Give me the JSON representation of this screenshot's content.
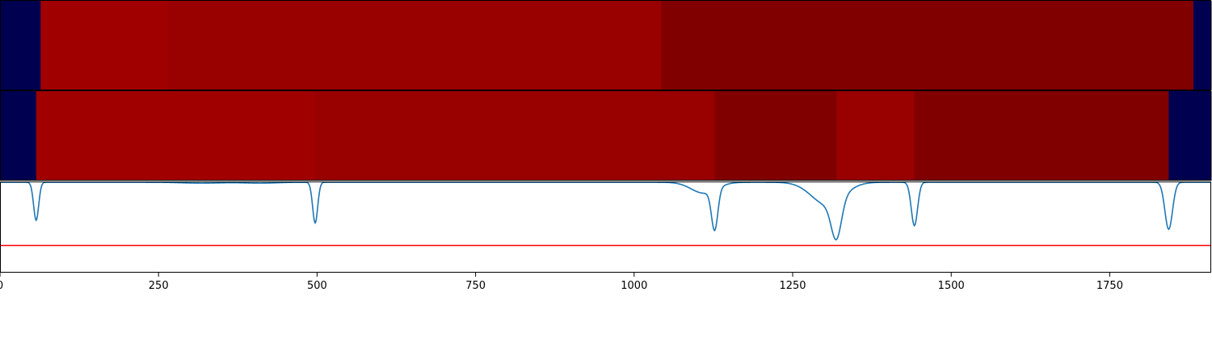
{
  "chart_data": {
    "type": "segment-timeline-with-line",
    "x_range": [
      0,
      1910
    ],
    "colors": {
      "background_segment": "#000050",
      "level_1": "#a00000",
      "level_2": "#990000",
      "level_3": "#800000",
      "signal_line": "#1f77b4",
      "threshold_line": "#ff0000",
      "frame": "#000000"
    },
    "rows": [
      {
        "segments": [
          {
            "start": 0,
            "end": 64,
            "level": "background_segment"
          },
          {
            "start": 64,
            "end": 265,
            "level": "level_1"
          },
          {
            "start": 265,
            "end": 1043,
            "level": "level_2"
          },
          {
            "start": 1043,
            "end": 1882,
            "level": "level_3"
          },
          {
            "start": 1882,
            "end": 1910,
            "level": "background_segment"
          }
        ]
      },
      {
        "segments": [
          {
            "start": 0,
            "end": 57,
            "level": "background_segment"
          },
          {
            "start": 57,
            "end": 497,
            "level": "level_1"
          },
          {
            "start": 497,
            "end": 1127,
            "level": "level_2"
          },
          {
            "start": 1127,
            "end": 1319,
            "level": "level_3"
          },
          {
            "start": 1319,
            "end": 1442,
            "level": "level_2"
          },
          {
            "start": 1442,
            "end": 1843,
            "level": "level_3"
          },
          {
            "start": 1843,
            "end": 1910,
            "level": "background_segment"
          }
        ]
      }
    ],
    "signal": {
      "baseline": 1.0,
      "threshold": 0.3,
      "ylim": [
        0.0,
        1.0
      ],
      "dips": [
        {
          "x": 57,
          "width": 4,
          "depth": 0.42
        },
        {
          "x": 318,
          "width": 30,
          "depth": 0.01
        },
        {
          "x": 410,
          "width": 25,
          "depth": 0.01
        },
        {
          "x": 497,
          "width": 4,
          "depth": 0.45
        },
        {
          "x": 1110,
          "width": 20,
          "depth": 0.12
        },
        {
          "x": 1127,
          "width": 5,
          "depth": 0.45
        },
        {
          "x": 1305,
          "width": 25,
          "depth": 0.25
        },
        {
          "x": 1319,
          "width": 8,
          "depth": 0.42
        },
        {
          "x": 1442,
          "width": 5,
          "depth": 0.48
        },
        {
          "x": 1843,
          "width": 6,
          "depth": 0.52
        }
      ]
    },
    "xticks": [
      0,
      250,
      500,
      750,
      1000,
      1250,
      1500,
      1750
    ],
    "xtick_labels": [
      "0",
      "250",
      "500",
      "750",
      "1000",
      "1250",
      "1500",
      "1750"
    ]
  }
}
